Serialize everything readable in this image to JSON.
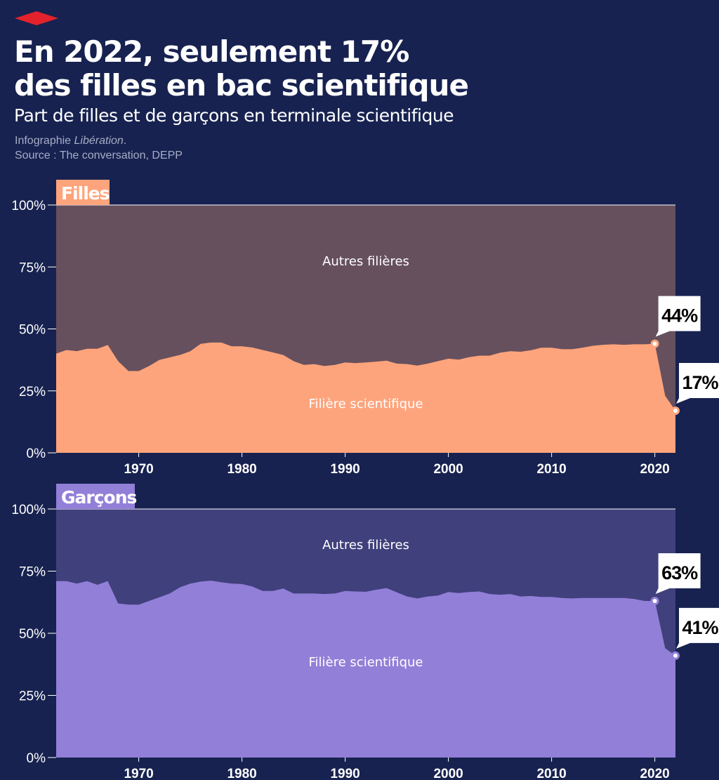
{
  "header": {
    "title_line1": "En 2022, seulement 17%",
    "title_line2": "des filles en bac scientifique",
    "subtitle": "Part de filles et de garçons en terminale scientifique",
    "credit_prefix": "Infographie ",
    "credit_brand": "Libération",
    "credit_suffix": ".",
    "source": "Source : The conversation, DEPP"
  },
  "colors": {
    "background": "#172250",
    "logo": "#e3222b",
    "filles_sci": "#fea47c",
    "filles_other": "#66505e",
    "garcons_sci": "#927fd8",
    "garcons_other": "#40407c"
  },
  "chart_data": [
    {
      "type": "area",
      "title": "Filles",
      "stacked": true,
      "x_ticks": [
        1970,
        1980,
        1990,
        2000,
        2010,
        2020
      ],
      "y_ticks": [
        "0%",
        "25%",
        "50%",
        "75%",
        "100%"
      ],
      "xlim": [
        1962,
        2022
      ],
      "ylim": [
        0,
        100
      ],
      "series": [
        {
          "name": "Filière scientifique",
          "color": "#fea47c"
        },
        {
          "name": "Autres filières",
          "color": "#66505e"
        }
      ],
      "x": [
        1962,
        1963,
        1964,
        1965,
        1966,
        1967,
        1968,
        1969,
        1970,
        1971,
        1972,
        1973,
        1974,
        1975,
        1976,
        1977,
        1978,
        1979,
        1980,
        1981,
        1982,
        1983,
        1984,
        1985,
        1986,
        1987,
        1988,
        1989,
        1990,
        1991,
        1992,
        1993,
        1994,
        1995,
        1996,
        1997,
        1998,
        1999,
        2000,
        2001,
        2002,
        2003,
        2004,
        2005,
        2006,
        2007,
        2008,
        2009,
        2010,
        2011,
        2012,
        2013,
        2014,
        2015,
        2016,
        2017,
        2018,
        2019,
        2020,
        2021,
        2022
      ],
      "values": [
        40,
        41.5,
        41,
        42,
        42,
        43.5,
        37,
        33,
        33,
        35,
        37.5,
        38.5,
        39.5,
        41,
        44,
        44.5,
        44.5,
        43,
        43,
        42.5,
        41.5,
        40.5,
        39.5,
        37,
        35.5,
        35.8,
        35,
        35.5,
        36.5,
        36.2,
        36.5,
        36.8,
        37.2,
        36,
        35.8,
        35.2,
        36,
        37,
        38,
        37.6,
        38.6,
        39.2,
        39.2,
        40.4,
        41,
        40.8,
        41.4,
        42.4,
        42.4,
        41.8,
        41.8,
        42.4,
        43.2,
        43.6,
        43.8,
        43.6,
        43.8,
        43.8,
        44,
        23,
        17
      ],
      "annotations": [
        {
          "x": 2020,
          "y": 44,
          "label": "44%"
        },
        {
          "x": 2022,
          "y": 17,
          "label": "17%"
        }
      ]
    },
    {
      "type": "area",
      "title": "Garçons",
      "stacked": true,
      "x_ticks": [
        1970,
        1980,
        1990,
        2000,
        2010,
        2020
      ],
      "y_ticks": [
        "0%",
        "25%",
        "50%",
        "75%",
        "100%"
      ],
      "xlim": [
        1962,
        2022
      ],
      "ylim": [
        0,
        100
      ],
      "series": [
        {
          "name": "Filière scientifique",
          "color": "#927fd8"
        },
        {
          "name": "Autres filières",
          "color": "#40407c"
        }
      ],
      "x": [
        1962,
        1963,
        1964,
        1965,
        1966,
        1967,
        1968,
        1969,
        1970,
        1971,
        1972,
        1973,
        1974,
        1975,
        1976,
        1977,
        1978,
        1979,
        1980,
        1981,
        1982,
        1983,
        1984,
        1985,
        1986,
        1987,
        1988,
        1989,
        1990,
        1991,
        1992,
        1993,
        1994,
        1995,
        1996,
        1997,
        1998,
        1999,
        2000,
        2001,
        2002,
        2003,
        2004,
        2005,
        2006,
        2007,
        2008,
        2009,
        2010,
        2011,
        2012,
        2013,
        2014,
        2015,
        2016,
        2017,
        2018,
        2019,
        2020,
        2021,
        2022
      ],
      "values": [
        71,
        71,
        70,
        71,
        69.5,
        71,
        62,
        61.5,
        61.5,
        63,
        64.5,
        66,
        68.5,
        70,
        70.8,
        71.2,
        70.5,
        70,
        69.8,
        68.8,
        67,
        67,
        68,
        66,
        66,
        66,
        65.8,
        66,
        67,
        66.8,
        66.7,
        67.5,
        68.2,
        66.5,
        64.8,
        64,
        64.8,
        65.2,
        66.6,
        66.2,
        66.6,
        66.8,
        65.8,
        65.5,
        65.8,
        64.8,
        65,
        64.6,
        64.6,
        64.2,
        64,
        64.2,
        64.2,
        64.2,
        64.2,
        64.2,
        63.8,
        63,
        63,
        44,
        41
      ],
      "annotations": [
        {
          "x": 2020,
          "y": 63,
          "label": "63%"
        },
        {
          "x": 2022,
          "y": 41,
          "label": "41%"
        }
      ]
    }
  ]
}
